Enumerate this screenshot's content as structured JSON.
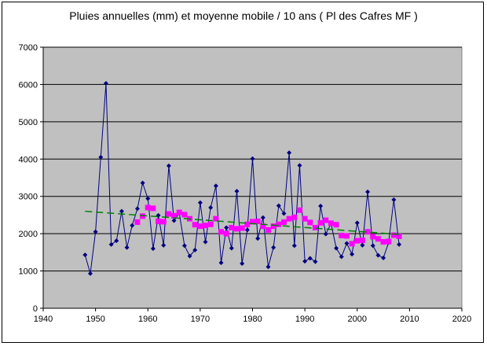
{
  "chart_data": {
    "type": "line",
    "title": "Pluies annuelles (mm) et moyenne mobile / 10 ans ( Pl des Cafres MF )",
    "xlabel": "",
    "ylabel": "",
    "xlim": [
      1940,
      2020
    ],
    "ylim": [
      0,
      7000
    ],
    "xticks": [
      "1940",
      "1950",
      "1960",
      "1970",
      "1980",
      "1990",
      "2000",
      "2010",
      "2020"
    ],
    "yticks": [
      "0",
      "1000",
      "2000",
      "3000",
      "4000",
      "5000",
      "6000",
      "7000"
    ],
    "grid": true,
    "plot_background": "#c0c0c0",
    "series": [
      {
        "name": "",
        "style": "line-diamond",
        "color": "#000080",
        "x": [
          1948,
          1949,
          1950,
          1951,
          1952,
          1953,
          1954,
          1955,
          1956,
          1957,
          1958,
          1959,
          1960,
          1961,
          1962,
          1963,
          1964,
          1965,
          1966,
          1967,
          1968,
          1969,
          1970,
          1971,
          1972,
          1973,
          1974,
          1975,
          1976,
          1977,
          1978,
          1979,
          1980,
          1981,
          1982,
          1983,
          1984,
          1985,
          1986,
          1987,
          1988,
          1989,
          1990,
          1991,
          1992,
          1993,
          1994,
          1995,
          1996,
          1997,
          1998,
          1999,
          2000,
          2001,
          2002,
          2003,
          2004,
          2005,
          2006,
          2007,
          2008
        ],
        "y": [
          1430,
          930,
          2050,
          4050,
          6030,
          1710,
          1810,
          2600,
          1630,
          2220,
          2670,
          3360,
          2940,
          1600,
          2490,
          1690,
          3820,
          2350,
          2550,
          1680,
          1400,
          1560,
          2830,
          1780,
          2700,
          3280,
          1220,
          2160,
          1610,
          3140,
          1200,
          2100,
          4010,
          1870,
          2430,
          1110,
          1630,
          2750,
          2540,
          4170,
          1680,
          3830,
          1260,
          1340,
          1250,
          2740,
          1990,
          2270,
          1610,
          1380,
          1740,
          1450,
          2290,
          1690,
          3120,
          1680,
          1420,
          1350,
          1760,
          2910,
          1710
        ]
      },
      {
        "name": "",
        "style": "markers-square",
        "color": "#ff00ff",
        "x": [
          1958,
          1959,
          1960,
          1961,
          1962,
          1963,
          1964,
          1965,
          1966,
          1967,
          1968,
          1969,
          1970,
          1971,
          1972,
          1973,
          1974,
          1975,
          1976,
          1977,
          1978,
          1979,
          1980,
          1981,
          1982,
          1983,
          1984,
          1985,
          1986,
          1987,
          1988,
          1989,
          1990,
          1991,
          1992,
          1993,
          1994,
          1995,
          1996,
          1997,
          1998,
          1999,
          2000,
          2001,
          2002,
          2003,
          2004,
          2005,
          2006,
          2007,
          2008
        ],
        "y": [
          2310,
          2470,
          2700,
          2680,
          2330,
          2320,
          2530,
          2480,
          2570,
          2510,
          2400,
          2240,
          2200,
          2220,
          2250,
          2400,
          2050,
          2000,
          2160,
          2130,
          2150,
          2250,
          2320,
          2330,
          2200,
          2100,
          2200,
          2250,
          2310,
          2400,
          2440,
          2630,
          2400,
          2300,
          2160,
          2290,
          2360,
          2280,
          2240,
          1950,
          1940,
          1730,
          1810,
          1820,
          2050,
          1920,
          1860,
          1780,
          1790,
          1960,
          1930
        ]
      },
      {
        "name": "",
        "style": "dashed-line",
        "color": "#008000",
        "x": [
          1948,
          2008
        ],
        "y": [
          2600,
          1980
        ]
      }
    ]
  }
}
